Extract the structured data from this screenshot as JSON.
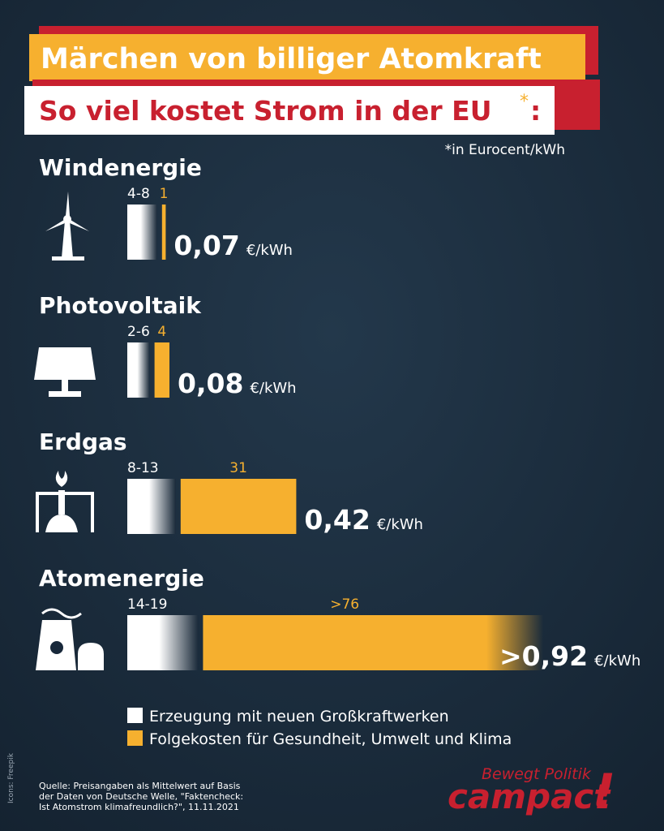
{
  "header": {
    "title": "Märchen von billiger Atomkraft",
    "subtitle": "So viel kostet Strom in der EU",
    "asterisk": "*",
    "colon": ":",
    "footnote": "*in Eurocent/kWh"
  },
  "unit": "€/kWh",
  "items": [
    {
      "name": "Windenergie",
      "icon": "wind",
      "generation": {
        "min": 4,
        "max": 8,
        "label": "4-8"
      },
      "followup": 1,
      "total": {
        "value": 0.07,
        "label": "0,07"
      }
    },
    {
      "name": "Photovoltaik",
      "icon": "solar",
      "generation": {
        "min": 2,
        "max": 6,
        "label": "2-6"
      },
      "followup": 4,
      "total": {
        "value": 0.08,
        "label": "0,08"
      }
    },
    {
      "name": "Erdgas",
      "icon": "gas",
      "generation": {
        "min": 8,
        "max": 13,
        "label": "8-13"
      },
      "followup": 31,
      "total": {
        "value": 0.42,
        "label": "0,42"
      }
    },
    {
      "name": "Atomenergie",
      "icon": "nuclear",
      "generation": {
        "min": 14,
        "max": 19,
        "label": "14-19"
      },
      "followup": {
        "value": 76,
        "label": ">76"
      },
      "total": {
        "value": 0.92,
        "label": ">0,92"
      }
    }
  ],
  "legend": [
    {
      "name": "Erzeugung mit neuen Großkraftwerken",
      "color": "#ffffff"
    },
    {
      "name": "Folgekosten für Gesundheit, Umwelt und Klima",
      "color": "#f6b02f"
    }
  ],
  "source": [
    "Quelle: Preisangaben als Mittelwert auf Basis",
    "der Daten von Deutsche Welle, \"Faktencheck:",
    "Ist Atomstrom klimafreundlich?\", 11.11.2021"
  ],
  "credit": "Icons: Freepik",
  "logo": {
    "tagline": "Bewegt Politik",
    "brand": "campact",
    "mark": "!"
  }
}
